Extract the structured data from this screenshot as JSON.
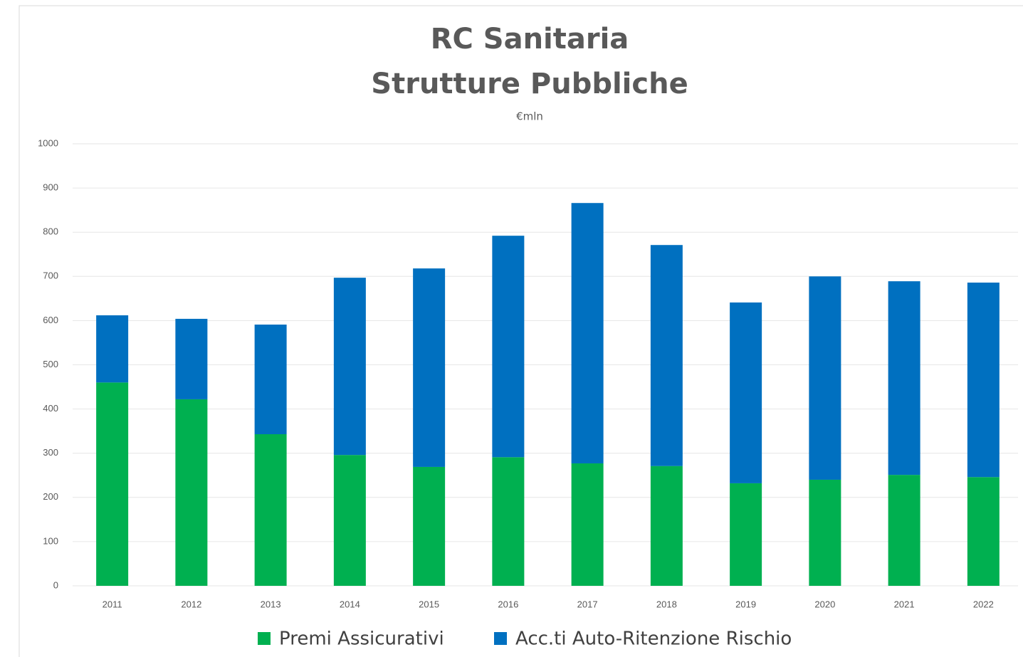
{
  "chart_data": {
    "type": "stacked_bar",
    "title": [
      "RC Sanitaria",
      "Strutture Pubbliche"
    ],
    "subtitle": "€mln",
    "categories": [
      "2011",
      "2012",
      "2013",
      "2014",
      "2015",
      "2016",
      "2017",
      "2018",
      "2019",
      "2020",
      "2021",
      "2022"
    ],
    "series": [
      {
        "name": "Premi Assicurativi",
        "color": "#00b050",
        "values": [
          460,
          422,
          343,
          296,
          269,
          291,
          277,
          271,
          232,
          240,
          251,
          246
        ]
      },
      {
        "name": "Acc.ti Auto-Ritenzione Rischio",
        "color": "#0070c0",
        "values": [
          152,
          182,
          248,
          401,
          449,
          501,
          589,
          500,
          409,
          460,
          438,
          440
        ]
      }
    ],
    "ylim": [
      0,
      1000
    ],
    "yticks": [
      0,
      100,
      200,
      300,
      400,
      500,
      600,
      700,
      800,
      900,
      1000
    ],
    "grid": true,
    "legend": "bottom"
  }
}
